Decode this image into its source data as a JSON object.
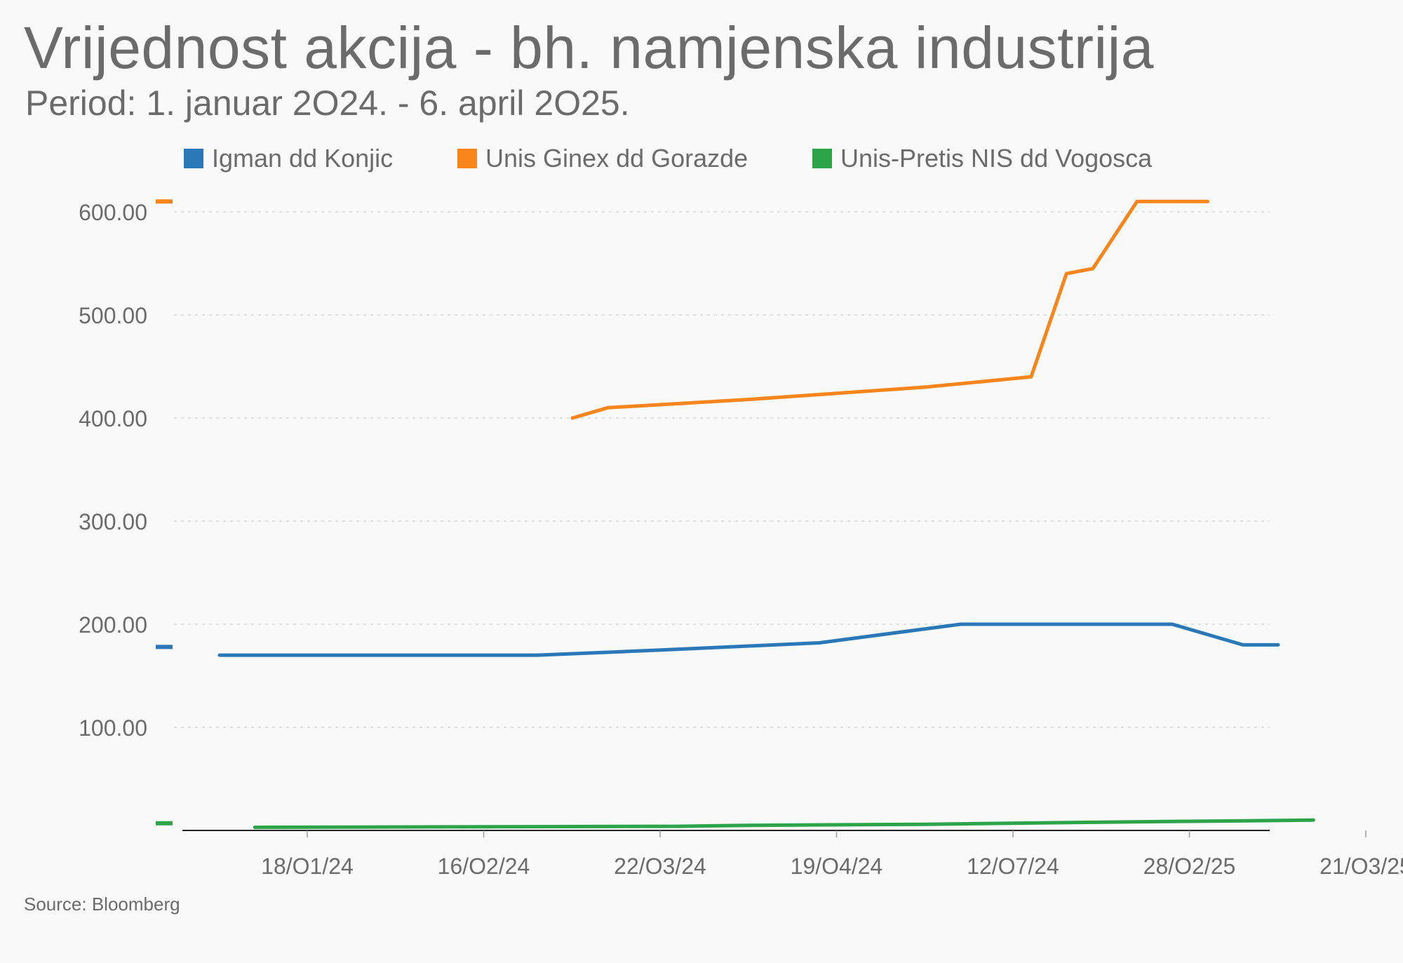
{
  "header": {
    "title": "Vrijednost akcija - bh. namjenska industrija",
    "subtitle": "Period: 1. januar 2O24. - 6. april 2O25."
  },
  "source": "Source: Bloomberg",
  "chart_data": {
    "type": "line",
    "title": "Vrijednost akcija - bh. namjenska industrija",
    "subtitle": "Period: 1. januar 2O24. - 6. april 2O25.",
    "xlabel": "",
    "ylabel": "",
    "ylim": [
      0,
      600
    ],
    "yticks": [
      100,
      200,
      300,
      400,
      500,
      600
    ],
    "ytick_labels": [
      "100.00",
      "200.00",
      "300.00",
      "400.00",
      "500.00",
      "600.00"
    ],
    "x_categories": [
      "18/O1/24",
      "16/O2/24",
      "22/O3/24",
      "19/O4/24",
      "12/O7/24",
      "28/O2/25",
      "21/O3/25"
    ],
    "x_domain": [
      -0.25,
      6
    ],
    "grid": true,
    "legend_position": "top",
    "series": [
      {
        "name": "Igman dd Konjic",
        "color": "#2b78b9",
        "points": [
          [
            0,
            170
          ],
          [
            1.8,
            170
          ],
          [
            2.5,
            175
          ],
          [
            3.4,
            182
          ],
          [
            4.2,
            200
          ],
          [
            5.4,
            200
          ],
          [
            5.8,
            180
          ],
          [
            6.0,
            180
          ]
        ]
      },
      {
        "name": "Unis Ginex dd Gorazde",
        "color": "#f8841c",
        "points": [
          [
            2.0,
            400
          ],
          [
            2.2,
            410
          ],
          [
            3.0,
            418
          ],
          [
            4.0,
            430
          ],
          [
            4.6,
            440
          ],
          [
            4.8,
            540
          ],
          [
            4.95,
            545
          ],
          [
            5.2,
            610
          ],
          [
            5.6,
            610
          ]
        ]
      },
      {
        "name": "Unis-Pretis NIS dd Vogosca",
        "color": "#2da34a",
        "points": [
          [
            0.2,
            3
          ],
          [
            2.6,
            4
          ],
          [
            3.0,
            5
          ],
          [
            4.0,
            6
          ],
          [
            5.0,
            8
          ],
          [
            6.2,
            10
          ]
        ]
      }
    ]
  }
}
